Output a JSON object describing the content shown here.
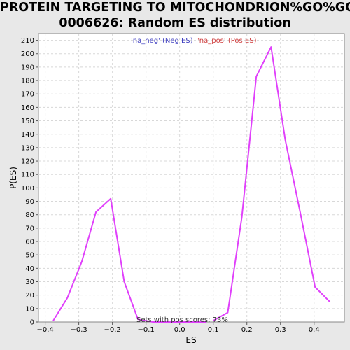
{
  "title_line1": "PROTEIN TARGETING TO MITOCHONDRION%GO%GO:",
  "title_line2": "0006626: Random ES distribution",
  "chart_data": {
    "type": "line",
    "xlabel": "ES",
    "ylabel": "P(ES)",
    "xlim": [
      -0.42,
      0.49
    ],
    "ylim": [
      0,
      215
    ],
    "xticks": [
      -0.4,
      -0.3,
      -0.2,
      -0.1,
      0.0,
      0.1,
      0.2,
      0.3,
      0.4
    ],
    "xtick_labels": [
      "−0.4",
      "−0.3",
      "−0.2",
      "−0.1",
      "0.0",
      "0.1",
      "0.2",
      "0.3",
      "0.4"
    ],
    "yticks": [
      0,
      10,
      20,
      30,
      40,
      50,
      60,
      70,
      80,
      90,
      100,
      110,
      120,
      130,
      140,
      150,
      160,
      170,
      180,
      190,
      200,
      210
    ],
    "grid": true,
    "legend_placement": "top-center",
    "series": [
      {
        "name": "'na_neg' (Neg ES)",
        "color": "#e040fb",
        "x": [
          -0.376,
          -0.334,
          -0.291,
          -0.249,
          -0.205,
          -0.165,
          -0.124,
          -0.08,
          -0.04,
          0.0,
          0.04,
          0.08
        ],
        "y": [
          1,
          18,
          45,
          82,
          92,
          30,
          2,
          0,
          0,
          0,
          0,
          0
        ]
      },
      {
        "name": "'na_pos' (Pos ES)",
        "color": "#e040fb",
        "x": [
          0.1,
          0.143,
          0.185,
          0.228,
          0.272,
          0.314,
          0.36,
          0.403,
          0.447
        ],
        "y": [
          1,
          7,
          78,
          183,
          205,
          136,
          80,
          26,
          15
        ]
      }
    ],
    "legend": [
      {
        "label": "'na_neg' (Neg ES)",
        "color": "#4040c0"
      },
      {
        "label": "'na_pos' (Pos ES)",
        "color": "#d04040"
      }
    ],
    "annotation": "Sets with pos scores: 73%"
  }
}
